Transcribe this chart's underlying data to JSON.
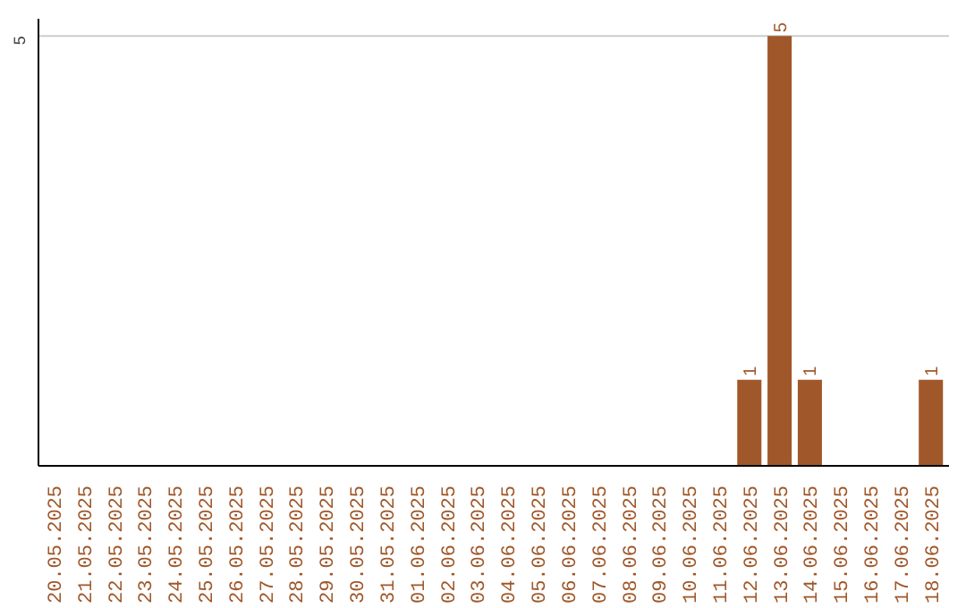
{
  "chart_data": {
    "type": "bar",
    "categories": [
      "20.05.2025",
      "21.05.2025",
      "22.05.2025",
      "23.05.2025",
      "24.05.2025",
      "25.05.2025",
      "26.05.2025",
      "27.05.2025",
      "28.05.2025",
      "29.05.2025",
      "30.05.2025",
      "31.05.2025",
      "01.06.2025",
      "02.06.2025",
      "03.06.2025",
      "04.06.2025",
      "05.06.2025",
      "06.06.2025",
      "07.06.2025",
      "08.06.2025",
      "09.06.2025",
      "10.06.2025",
      "11.06.2025",
      "12.06.2025",
      "13.06.2025",
      "14.06.2025",
      "15.06.2025",
      "16.06.2025",
      "17.06.2025",
      "18.06.2025"
    ],
    "values": [
      null,
      null,
      null,
      null,
      null,
      null,
      null,
      null,
      null,
      null,
      null,
      null,
      null,
      null,
      null,
      null,
      null,
      null,
      null,
      null,
      null,
      null,
      null,
      1,
      5,
      1,
      null,
      null,
      null,
      1
    ],
    "data_labels": true,
    "color": "#a0582a",
    "ylim": [
      0,
      5.2
    ],
    "ref_lines": [
      {
        "axis": "y",
        "value": 5,
        "label": "5",
        "color": "#cccccc"
      }
    ]
  }
}
